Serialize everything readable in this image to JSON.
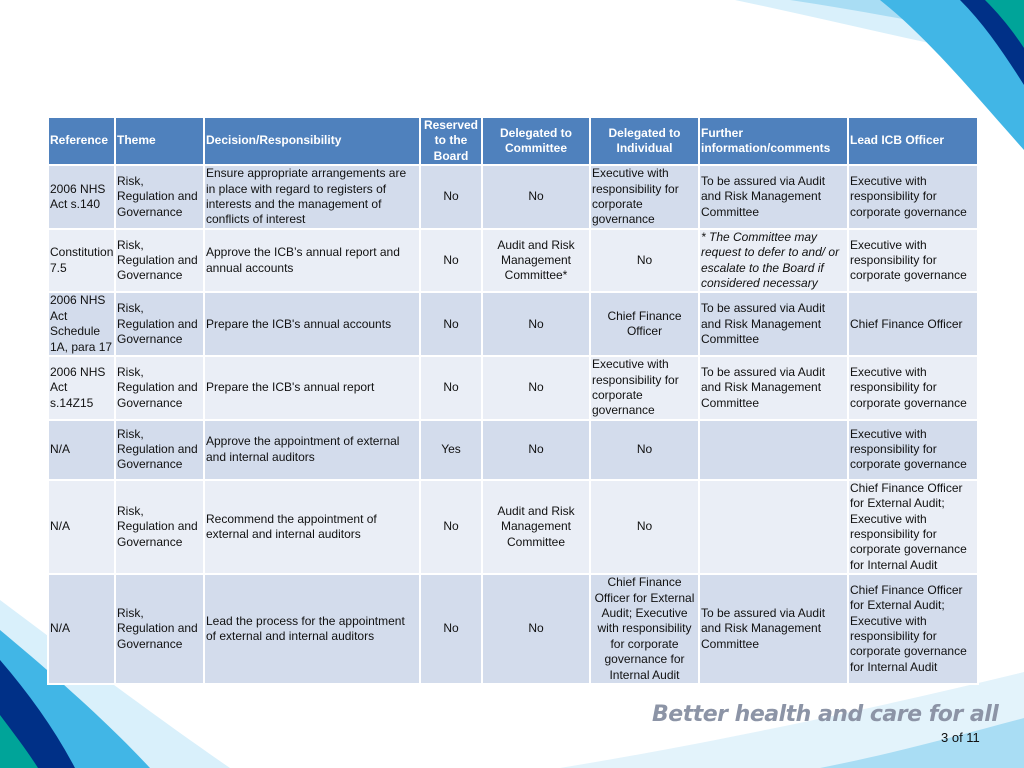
{
  "brand": {
    "tagline": "Better health and care for all",
    "accent_colors": [
      "#0072c6",
      "#41b6e6",
      "#00a499",
      "#003087"
    ]
  },
  "page": {
    "number": "3 of 11"
  },
  "table": {
    "headers": {
      "reference": "Reference",
      "theme": "Theme",
      "decision": "Decision/Responsibility",
      "reserved": "Reserved to the Board",
      "delegated_committee": "Delegated to Committee",
      "delegated_individual": "Delegated to Individual",
      "further_info": "Further information/comments",
      "lead_officer": "Lead ICB Officer"
    },
    "rows": [
      {
        "reference": "2006 NHS Act s.140",
        "theme": "Risk, Regulation and Governance",
        "decision": "Ensure appropriate arrangements are in place with regard to registers of interests and the management of conflicts of interest",
        "reserved": "No",
        "delegated_committee": "No",
        "delegated_individual": "Executive with responsibility for corporate governance",
        "further_info": "To be assured via Audit and Risk Management Committee",
        "lead_officer": "Executive with responsibility for corporate governance"
      },
      {
        "reference": "Constitution 7.5",
        "theme": "Risk, Regulation and Governance",
        "decision": "Approve the ICB’s annual report and annual accounts",
        "reserved": "No",
        "delegated_committee": "Audit and Risk Management Committee*",
        "delegated_individual": "No",
        "further_info": "* The Committee may request to defer to and/ or escalate to the Board if considered necessary",
        "lead_officer": "Executive with responsibility for corporate governance"
      },
      {
        "reference": "2006 NHS Act Schedule 1A, para 17",
        "theme": "Risk, Regulation and Governance",
        "decision": "Prepare the ICB's annual accounts",
        "reserved": "No",
        "delegated_committee": "No",
        "delegated_individual": "Chief Finance Officer",
        "further_info": "To be assured via Audit and Risk Management Committee",
        "lead_officer": "Chief Finance Officer"
      },
      {
        "reference": "2006 NHS Act s.14Z15",
        "theme": "Risk, Regulation and Governance",
        "decision": "Prepare the ICB's annual report",
        "reserved": "No",
        "delegated_committee": "No",
        "delegated_individual": "Executive with responsibility for corporate governance",
        "further_info": "To be assured via Audit and Risk Management Committee",
        "lead_officer": "Executive with responsibility for corporate governance"
      },
      {
        "reference": "N/A",
        "theme": "Risk, Regulation and Governance",
        "decision": "Approve the appointment of external and internal auditors",
        "reserved": "Yes",
        "delegated_committee": "No",
        "delegated_individual": "No",
        "further_info": "",
        "lead_officer": "Executive with responsibility for corporate governance"
      },
      {
        "reference": "N/A",
        "theme": "Risk, Regulation and Governance",
        "decision": "Recommend the appointment of external and internal auditors",
        "reserved": "No",
        "delegated_committee": "Audit and Risk Management Committee",
        "delegated_individual": "No",
        "further_info": "",
        "lead_officer": "Chief Finance Officer for External Audit; Executive with responsibility for corporate governance for Internal Audit"
      },
      {
        "reference": "N/A",
        "theme": "Risk, Regulation and Governance",
        "decision": "Lead the process for the appointment of external and internal auditors",
        "reserved": "No",
        "delegated_committee": "No",
        "delegated_individual": "Chief Finance Officer for External Audit; Executive with responsibility for corporate governance for Internal Audit",
        "further_info": "To be assured via Audit and Risk Management Committee",
        "lead_officer": "Chief Finance Officer for External Audit; Executive with responsibility for corporate governance for Internal Audit"
      }
    ]
  }
}
